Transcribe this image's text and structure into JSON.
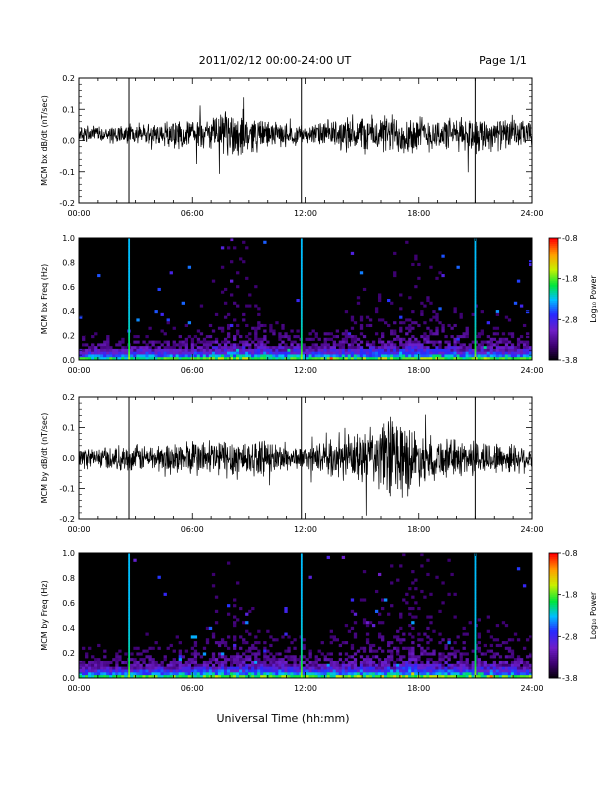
{
  "header": {
    "title": "2011/02/12  00:00-24:00 UT",
    "page_label": "Page 1/1"
  },
  "footer": {
    "xlabel": "Universal Time (hh:mm)"
  },
  "colorbar": {
    "label": "Log₁₀ Power",
    "ticks": [
      "-0.8",
      "-1.8",
      "-2.8",
      "-3.8"
    ],
    "min": -3.8,
    "max": -0.8
  },
  "chart_data": [
    {
      "type": "line",
      "ylabel": "MCM bx dB/dt (nT/sec)",
      "xlim": [
        0,
        24
      ],
      "ylim": [
        -0.2,
        0.2
      ],
      "xticks": [
        "00:00",
        "06:00",
        "12:00",
        "18:00",
        "24:00"
      ],
      "yticks": [
        "0.2",
        "0.1",
        "0.0",
        "-0.1",
        "-0.2"
      ],
      "series": [
        {
          "x": [
            0,
            1,
            2,
            2.6,
            3,
            4,
            5,
            6,
            7,
            8,
            8.5,
            9,
            10,
            11,
            11.7,
            12,
            13,
            14,
            15,
            16,
            17,
            18,
            19,
            20,
            21,
            22,
            23,
            24
          ],
          "amp": [
            0.03,
            0.03,
            0.035,
            0.035,
            0.04,
            0.04,
            0.05,
            0.05,
            0.06,
            0.09,
            0.1,
            0.07,
            0.05,
            0.04,
            0.04,
            0.03,
            0.05,
            0.06,
            0.07,
            0.07,
            0.08,
            0.07,
            0.06,
            0.06,
            0.07,
            0.06,
            0.05,
            0.05
          ],
          "center": 0.02
        }
      ],
      "spikes": [
        {
          "x": 2.65,
          "min": -0.2,
          "max": 0.2
        },
        {
          "x": 11.8,
          "min": -0.2,
          "max": 0.2
        },
        {
          "x": 21.0,
          "min": -0.2,
          "max": 0.2
        }
      ]
    },
    {
      "type": "heatmap",
      "ylabel": "MCM bx Freq (Hz)",
      "xlim": [
        0,
        24
      ],
      "ylim": [
        0.0,
        1.0
      ],
      "xticks": [
        "00:00",
        "06:00",
        "12:00",
        "18:00",
        "24:00"
      ],
      "yticks": [
        "1.0",
        "0.8",
        "0.6",
        "0.4",
        "0.2",
        "0.0"
      ],
      "activity": [
        0.25,
        0.3,
        0.3,
        0.35,
        0.35,
        0.4,
        0.45,
        0.6,
        0.6,
        0.55,
        0.5,
        0.45,
        0.4,
        0.45,
        0.5,
        0.55,
        0.6,
        0.65,
        0.6,
        0.55,
        0.5,
        0.5,
        0.45,
        0.4
      ],
      "lines": [
        2.65,
        11.8,
        21.0
      ]
    },
    {
      "type": "line",
      "ylabel": "MCM by dB/dt (nT/sec)",
      "xlim": [
        0,
        24
      ],
      "ylim": [
        -0.2,
        0.2
      ],
      "xticks": [
        "00:00",
        "06:00",
        "12:00",
        "18:00",
        "24:00"
      ],
      "yticks": [
        "0.2",
        "0.1",
        "0.0",
        "-0.1",
        "-0.2"
      ],
      "series": [
        {
          "x": [
            0,
            1,
            2,
            2.6,
            3,
            4,
            5,
            6,
            7,
            8,
            8.5,
            9,
            10,
            11,
            11.7,
            12,
            13,
            14,
            15,
            16,
            16.5,
            17,
            18,
            19,
            20,
            21,
            22,
            23,
            24
          ],
          "amp": [
            0.04,
            0.04,
            0.045,
            0.05,
            0.05,
            0.05,
            0.06,
            0.07,
            0.07,
            0.08,
            0.08,
            0.07,
            0.06,
            0.05,
            0.04,
            0.04,
            0.06,
            0.08,
            0.1,
            0.12,
            0.18,
            0.16,
            0.1,
            0.08,
            0.07,
            0.07,
            0.06,
            0.06,
            0.05
          ],
          "center": 0.0
        }
      ],
      "spikes": [
        {
          "x": 2.65,
          "min": -0.2,
          "max": 0.2
        },
        {
          "x": 11.8,
          "min": -0.2,
          "max": 0.2
        },
        {
          "x": 21.0,
          "min": -0.2,
          "max": 0.2
        }
      ]
    },
    {
      "type": "heatmap",
      "ylabel": "MCM by Freq (Hz)",
      "xlim": [
        0,
        24
      ],
      "ylim": [
        0.0,
        1.0
      ],
      "xticks": [
        "00:00",
        "06:00",
        "12:00",
        "18:00",
        "24:00"
      ],
      "yticks": [
        "1.0",
        "0.8",
        "0.6",
        "0.4",
        "0.2",
        "0.0"
      ],
      "activity": [
        0.3,
        0.35,
        0.35,
        0.4,
        0.4,
        0.45,
        0.5,
        0.6,
        0.6,
        0.55,
        0.5,
        0.45,
        0.45,
        0.5,
        0.55,
        0.6,
        0.65,
        0.7,
        0.65,
        0.6,
        0.55,
        0.55,
        0.5,
        0.45
      ],
      "lines": [
        2.65,
        11.8,
        21.0
      ]
    }
  ]
}
